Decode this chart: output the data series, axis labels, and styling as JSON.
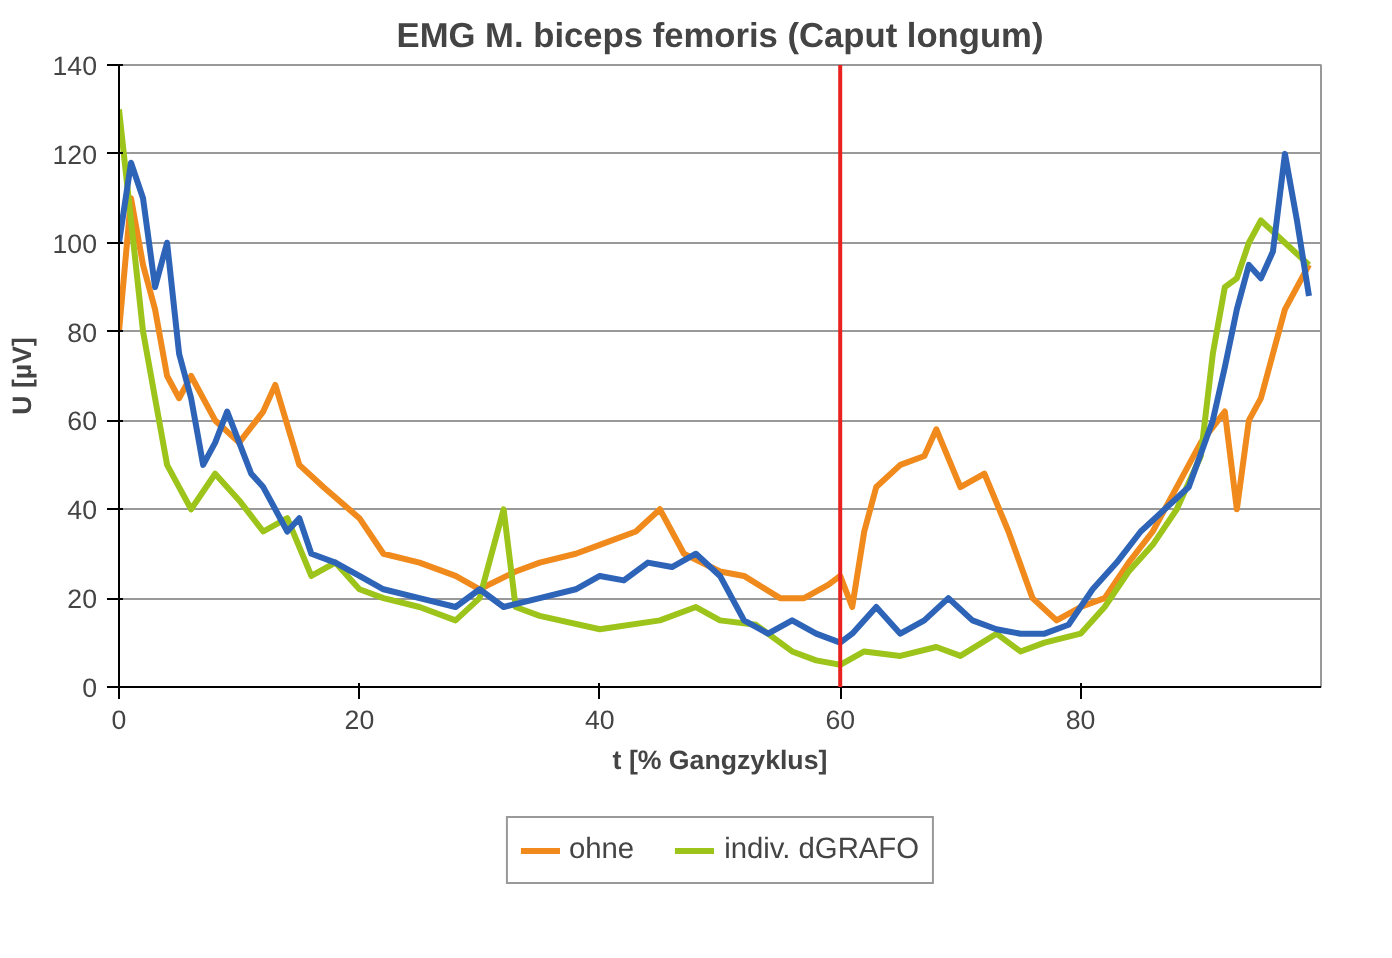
{
  "chart_data": {
    "type": "line",
    "title": "EMG M. biceps femoris (Caput longum)",
    "xlabel": "t [% Gangzyklus]",
    "ylabel": "U [µV]",
    "xlim": [
      0,
      100
    ],
    "xticks": [
      0,
      20,
      40,
      60,
      80
    ],
    "ylim": [
      0,
      140
    ],
    "yticks": [
      0,
      20,
      40,
      60,
      80,
      100,
      120,
      140
    ],
    "grid": "y",
    "legend": "bottom",
    "ref_lines": [
      {
        "axis": "x",
        "value": 60,
        "color": "#e8231f"
      }
    ],
    "series": [
      {
        "name": "ohne",
        "color": "#f08a1c",
        "x": [
          0,
          1,
          2,
          3,
          4,
          5,
          6,
          8,
          10,
          12,
          13,
          15,
          17,
          20,
          22,
          25,
          28,
          30,
          33,
          35,
          38,
          40,
          43,
          45,
          47,
          50,
          52,
          55,
          57,
          59,
          60,
          61,
          62,
          63,
          65,
          67,
          68,
          70,
          72,
          74,
          76,
          78,
          80,
          82,
          84,
          86,
          88,
          90,
          92,
          93,
          94,
          95,
          96,
          97,
          99
        ],
        "values": [
          80,
          110,
          95,
          85,
          70,
          65,
          70,
          60,
          55,
          62,
          68,
          50,
          45,
          38,
          30,
          28,
          25,
          22,
          26,
          28,
          30,
          32,
          35,
          40,
          30,
          26,
          25,
          20,
          20,
          23,
          25,
          18,
          35,
          45,
          50,
          52,
          58,
          45,
          48,
          35,
          20,
          15,
          18,
          20,
          28,
          35,
          45,
          55,
          62,
          40,
          60,
          65,
          75,
          85,
          95
        ]
      },
      {
        "name": "indiv. dGRAFO",
        "color": "#9dc41a",
        "x": [
          0,
          1,
          2,
          3,
          4,
          5,
          6,
          8,
          10,
          12,
          14,
          16,
          18,
          20,
          22,
          25,
          28,
          30,
          32,
          33,
          35,
          40,
          45,
          48,
          50,
          53,
          56,
          58,
          60,
          62,
          65,
          68,
          70,
          73,
          75,
          77,
          80,
          82,
          84,
          86,
          88,
          90,
          91,
          92,
          93,
          94,
          95,
          97,
          99
        ],
        "values": [
          130,
          105,
          80,
          65,
          50,
          45,
          40,
          48,
          42,
          35,
          38,
          25,
          28,
          22,
          20,
          18,
          15,
          20,
          40,
          18,
          16,
          13,
          15,
          18,
          15,
          14,
          8,
          6,
          5,
          8,
          7,
          9,
          7,
          12,
          8,
          10,
          12,
          18,
          26,
          32,
          40,
          52,
          75,
          90,
          92,
          100,
          105,
          100,
          95
        ]
      },
      {
        "color": "#2e64b8",
        "x": [
          0,
          1,
          2,
          3,
          4,
          5,
          6,
          7,
          8,
          9,
          10,
          11,
          12,
          13,
          14,
          15,
          16,
          18,
          20,
          22,
          25,
          28,
          30,
          32,
          35,
          38,
          40,
          42,
          44,
          46,
          48,
          50,
          52,
          54,
          56,
          58,
          60,
          61,
          63,
          65,
          67,
          69,
          71,
          73,
          75,
          77,
          79,
          81,
          83,
          85,
          87,
          89,
          91,
          92,
          93,
          94,
          95,
          96,
          97,
          98,
          99
        ],
        "values": [
          100,
          118,
          110,
          90,
          100,
          75,
          65,
          50,
          55,
          62,
          55,
          48,
          45,
          40,
          35,
          38,
          30,
          28,
          25,
          22,
          20,
          18,
          22,
          18,
          20,
          22,
          25,
          24,
          28,
          27,
          30,
          25,
          15,
          12,
          15,
          12,
          10,
          12,
          18,
          12,
          15,
          20,
          15,
          13,
          12,
          12,
          14,
          22,
          28,
          35,
          40,
          45,
          60,
          72,
          85,
          95,
          92,
          98,
          120,
          105,
          88
        ]
      }
    ]
  }
}
